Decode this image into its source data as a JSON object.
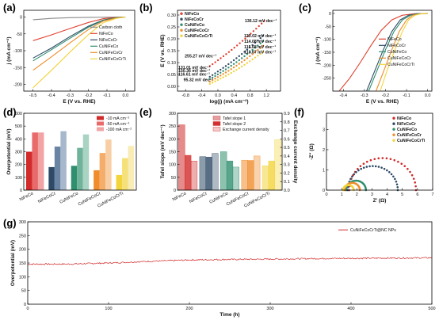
{
  "chart_data": [
    {
      "panel": "(a)",
      "type": "line",
      "xlabel": "E (V vs. RHE)",
      "ylabel": "j (mA cm⁻²)",
      "xlim": [
        -0.55,
        0.05
      ],
      "ylim": [
        -220,
        20
      ],
      "xticks": [
        "-0.5",
        "-0.4",
        "-0.3",
        "-0.2",
        "-0.1",
        "0.0"
      ],
      "xtick_values": [
        -0.5,
        -0.4,
        -0.3,
        -0.2,
        -0.1,
        0.0
      ],
      "yticks": [
        "-200",
        "-150",
        "-100",
        "-50",
        "0"
      ],
      "ytick_values": [
        -200,
        -150,
        -100,
        -50,
        0
      ],
      "series": [
        {
          "name": "Carbon cloth",
          "color": "#8a8a8a",
          "points": [
            [
              -0.5,
              -8
            ],
            [
              -0.4,
              -4
            ],
            [
              -0.3,
              -2
            ],
            [
              -0.2,
              -1
            ],
            [
              -0.1,
              -0.5
            ],
            [
              0.0,
              0
            ]
          ]
        },
        {
          "name": "NiFeCo",
          "color": "#e0402f",
          "points": [
            [
              -0.5,
              -70
            ],
            [
              -0.4,
              -53
            ],
            [
              -0.3,
              -34
            ],
            [
              -0.2,
              -16
            ],
            [
              -0.12,
              -5
            ],
            [
              -0.05,
              -1
            ],
            [
              0.0,
              0
            ]
          ]
        },
        {
          "name": "NiFeCoCr",
          "color": "#2e4a66",
          "points": [
            [
              -0.5,
              -122
            ],
            [
              -0.4,
              -92
            ],
            [
              -0.3,
              -58
            ],
            [
              -0.2,
              -27
            ],
            [
              -0.12,
              -9
            ],
            [
              -0.05,
              -2
            ],
            [
              0.0,
              0
            ]
          ]
        },
        {
          "name": "CuNiFeCo",
          "color": "#2f8f6e",
          "points": [
            [
              -0.5,
              -130
            ],
            [
              -0.4,
              -97
            ],
            [
              -0.3,
              -63
            ],
            [
              -0.2,
              -30
            ],
            [
              -0.12,
              -10
            ],
            [
              -0.05,
              -2
            ],
            [
              0.0,
              0
            ]
          ]
        },
        {
          "name": "CuNiFeCoCr",
          "color": "#f08c2a",
          "points": [
            [
              -0.5,
              -158
            ],
            [
              -0.4,
              -118
            ],
            [
              -0.3,
              -77
            ],
            [
              -0.2,
              -37
            ],
            [
              -0.12,
              -12
            ],
            [
              -0.05,
              -3
            ],
            [
              0.0,
              0
            ]
          ]
        },
        {
          "name": "CuNiFeCoCrTi",
          "color": "#f2d43d",
          "points": [
            [
              -0.5,
              -210
            ],
            [
              -0.4,
              -158
            ],
            [
              -0.3,
              -104
            ],
            [
              -0.2,
              -52
            ],
            [
              -0.12,
              -17
            ],
            [
              -0.05,
              -4
            ],
            [
              0.0,
              0
            ]
          ]
        }
      ]
    },
    {
      "panel": "(b)",
      "type": "scatter",
      "xlabel": "log(j) (mA cm⁻²)",
      "ylabel": "E (V vs. RHE)",
      "xlim": [
        -1.0,
        1.55
      ],
      "ylim": [
        -0.02,
        0.32
      ],
      "xticks": [
        "-0.8",
        "-0.4",
        "0.0",
        "0.4",
        "0.8",
        "1.2"
      ],
      "xtick_values": [
        -0.8,
        -0.4,
        0.0,
        0.4,
        0.8,
        1.2
      ],
      "yticks": [
        "0.00",
        "0.05",
        "0.10",
        "0.15",
        "0.20",
        "0.25",
        "0.30"
      ],
      "ytick_values": [
        0.0,
        0.05,
        0.1,
        0.15,
        0.2,
        0.25,
        0.3
      ],
      "series": [
        {
          "name": "NiFeCo",
          "color": "#e0402f",
          "x0": -0.2,
          "x1": 1.15,
          "y0": 0.085,
          "y1": 0.275,
          "label": "136.12 mV dec⁻¹",
          "label_x": 1.18,
          "label_y": 0.277
        },
        {
          "name": "NiFeCoCr",
          "color": "#2e4a66",
          "x0": -0.2,
          "x1": 1.12,
          "y0": 0.04,
          "y1": 0.213,
          "label": "129.02 mV dec⁻¹",
          "label_x": 1.16,
          "label_y": 0.214
        },
        {
          "name": "CuNiFeCo",
          "color": "#2f8f6e",
          "x0": -0.2,
          "x1": 1.12,
          "y0": 0.03,
          "y1": 0.19,
          "label": "114.08 mV dec⁻¹",
          "label_x": 1.16,
          "label_y": 0.19
        },
        {
          "name": "CuNiFeCoCr",
          "color": "#f08c2a",
          "x0": -0.2,
          "x1": 1.12,
          "y0": 0.02,
          "y1": 0.17,
          "label": "115.68 mV dec⁻¹",
          "label_x": 1.16,
          "label_y": 0.166
        },
        {
          "name": "CuNiFeCoCrTi",
          "color": "#f2d43d",
          "x0": -0.2,
          "x1": 1.12,
          "y0": 0.01,
          "y1": 0.145,
          "label": "113.67 mV dec⁻¹",
          "label_x": 1.16,
          "label_y": 0.145
        }
      ],
      "annotations": [
        {
          "text": "255.27 mV dec⁻¹",
          "x": -0.82,
          "y": 0.122,
          "color": "#e0402f"
        },
        {
          "text": "131.01 mV dec⁻¹",
          "x": -0.98,
          "y": 0.073,
          "color": "#2e4a66"
        },
        {
          "text": "150.36 mV dec⁻¹",
          "x": -0.98,
          "y": 0.06,
          "color": "#2f8f6e"
        },
        {
          "text": "116.61 mV dec⁻¹",
          "x": -0.98,
          "y": 0.045,
          "color": "#f08c2a"
        },
        {
          "text": "95.32 mV dec⁻¹",
          "x": -0.85,
          "y": 0.022,
          "color": "#d4b52a"
        }
      ]
    },
    {
      "panel": "(c)",
      "type": "line",
      "xlabel": "E (V vs. RHE)",
      "ylabel": "j (mA cm⁻²)",
      "xlim": [
        -0.45,
        0.02
      ],
      "ylim": [
        -300,
        12
      ],
      "xticks": [
        "-0.4",
        "-0.3",
        "-0.2",
        "-0.1",
        "0.0"
      ],
      "xtick_values": [
        -0.4,
        -0.3,
        -0.2,
        -0.1,
        0.0
      ],
      "yticks": [
        "-250",
        "-200",
        "-150",
        "-100",
        "-50",
        "0"
      ],
      "ytick_values": [
        -250,
        -200,
        -150,
        -100,
        -50,
        0
      ],
      "series": [
        {
          "name": "NiFeCo",
          "color": "#e0402f",
          "points": [
            [
              -0.42,
              -300
            ],
            [
              -0.37,
              -250
            ],
            [
              -0.32,
              -190
            ],
            [
              -0.27,
              -125
            ],
            [
              -0.22,
              -65
            ],
            [
              -0.17,
              -25
            ],
            [
              -0.12,
              -7
            ],
            [
              -0.06,
              -1
            ],
            [
              0.0,
              0
            ]
          ]
        },
        {
          "name": "NiFeCoCr",
          "color": "#2e4a66",
          "points": [
            [
              -0.29,
              -300
            ],
            [
              -0.25,
              -220
            ],
            [
              -0.21,
              -140
            ],
            [
              -0.17,
              -70
            ],
            [
              -0.13,
              -25
            ],
            [
              -0.09,
              -7
            ],
            [
              -0.05,
              -1
            ],
            [
              0.0,
              0
            ]
          ]
        },
        {
          "name": "CuNiFeCo",
          "color": "#2f8f6e",
          "points": [
            [
              -0.28,
              -300
            ],
            [
              -0.24,
              -220
            ],
            [
              -0.2,
              -140
            ],
            [
              -0.16,
              -70
            ],
            [
              -0.12,
              -25
            ],
            [
              -0.08,
              -7
            ],
            [
              -0.04,
              -1
            ],
            [
              0.0,
              0
            ]
          ]
        },
        {
          "name": "CuNiFeCoCr",
          "color": "#f08c2a",
          "points": [
            [
              -0.245,
              -300
            ],
            [
              -0.205,
              -215
            ],
            [
              -0.17,
              -140
            ],
            [
              -0.135,
              -70
            ],
            [
              -0.1,
              -25
            ],
            [
              -0.07,
              -7
            ],
            [
              -0.03,
              -1
            ],
            [
              0.0,
              0
            ]
          ]
        },
        {
          "name": "CuNiFeCoCrTi",
          "color": "#f2d43d",
          "points": [
            [
              -0.225,
              -300
            ],
            [
              -0.19,
              -215
            ],
            [
              -0.155,
              -140
            ],
            [
              -0.12,
              -70
            ],
            [
              -0.09,
              -25
            ],
            [
              -0.06,
              -7
            ],
            [
              -0.03,
              -1
            ],
            [
              0.0,
              0
            ]
          ]
        }
      ]
    },
    {
      "panel": "(d)",
      "type": "bar",
      "ylabel": "Overpotential (mV)",
      "ylim": [
        0,
        600
      ],
      "yticks": [
        "0",
        "100",
        "200",
        "300",
        "400",
        "500",
        "600"
      ],
      "ytick_values": [
        0,
        100,
        200,
        300,
        400,
        500,
        600
      ],
      "categories": [
        "NiFeCo",
        "NiFeCoCr",
        "CuNiFeCo",
        "CuNiFeCoCr",
        "CuNiFeCoCrTi"
      ],
      "series": [
        {
          "name": "-10 mA cm⁻²",
          "values": [
            300,
            180,
            190,
            155,
            118
          ],
          "colors": [
            "#d22b2b",
            "#2e4a66",
            "#2f8f6e",
            "#f08c2a",
            "#f2d43d"
          ]
        },
        {
          "name": "-50 mA cm⁻²",
          "values": [
            450,
            340,
            330,
            290,
            250
          ],
          "colors": [
            "#e86a6a",
            "#6a84a3",
            "#6fb49a",
            "#f4ad6a",
            "#f5e07a"
          ]
        },
        {
          "name": "-100 mA cm⁻²",
          "values": [
            450,
            460,
            435,
            395,
            345
          ],
          "colors": [
            "#f2a3a3",
            "#a7b8cc",
            "#a9d3c3",
            "#f8cfa5",
            "#f9ecb5"
          ]
        }
      ],
      "legend_swatches": [
        "#d22b2b",
        "#e86a6a",
        "#f2a3a3"
      ]
    },
    {
      "panel": "(e)",
      "type": "bar",
      "ylabel": "Tafel slope (mV dec⁻¹)",
      "y2label": "Exchange current density",
      "ylim": [
        0,
        300
      ],
      "y2lim": [
        0.0,
        0.9
      ],
      "yticks": [
        "0",
        "50",
        "100",
        "150",
        "200",
        "250",
        "300"
      ],
      "ytick_values": [
        0,
        50,
        100,
        150,
        200,
        250,
        300
      ],
      "y2ticks": [
        "0.0",
        "0.1",
        "0.2",
        "0.3",
        "0.4",
        "0.5",
        "0.6",
        "0.7",
        "0.8",
        "0.9"
      ],
      "y2tick_values": [
        0.0,
        0.1,
        0.2,
        0.3,
        0.4,
        0.5,
        0.6,
        0.7,
        0.8,
        0.9
      ],
      "categories": [
        "NiFeCo",
        "NiFeCoCr",
        "CuNiFeCo",
        "CuNiFeCoCr",
        "CuNiFeCoCrTi"
      ],
      "series": [
        {
          "name": "Tafel slope 1",
          "values": [
            255,
            131,
            150,
            117,
            95
          ]
        },
        {
          "name": "Tafel slope 2",
          "values": [
            136,
            129,
            114,
            116,
            114
          ]
        },
        {
          "name": "Exchange current density",
          "values": [
            0.34,
            0.43,
            0.27,
            0.4,
            0.59
          ]
        }
      ],
      "colors": [
        "#d22b2b",
        "#2e4a66",
        "#2f8f6e",
        "#f08c2a",
        "#f2d43d"
      ]
    },
    {
      "panel": "(f)",
      "type": "scatter",
      "xlabel": "Z' (Ω)",
      "ylabel": "-Z'' (Ω)",
      "xlim": [
        0,
        7
      ],
      "ylim": [
        0,
        3.8
      ],
      "xticks": [
        "0",
        "1",
        "2",
        "3",
        "4",
        "5",
        "6",
        "7"
      ],
      "xtick_values": [
        0,
        1,
        2,
        3,
        4,
        5,
        6,
        7
      ],
      "yticks": [
        "0",
        "1",
        "2",
        "3"
      ],
      "ytick_values": [
        0,
        1,
        2,
        3
      ],
      "series": [
        {
          "name": "NiFeCo",
          "color": "#d22b2b",
          "x_start": 1.5,
          "x_end": 5.9
        },
        {
          "name": "NiFeCoCr",
          "color": "#2e4a66",
          "x_start": 1.4,
          "x_end": 4.7
        },
        {
          "name": "CuNiFeCo",
          "color": "#2f8f6e",
          "x_start": 1.3,
          "x_end": 2.6
        },
        {
          "name": "CuNiFeCoCr",
          "color": "#f08c2a",
          "x_start": 1.2,
          "x_end": 2.2
        },
        {
          "name": "CuNiFeCoCrTi",
          "color": "#f2d43d",
          "x_start": 1.1,
          "x_end": 1.8
        }
      ]
    },
    {
      "panel": "(g)",
      "type": "line",
      "xlabel": "Time (h)",
      "ylabel": "Overpotential (mV)",
      "xlim": [
        0,
        500
      ],
      "ylim": [
        0,
        300
      ],
      "xticks": [
        "0",
        "100",
        "200",
        "300",
        "400",
        "500"
      ],
      "xtick_values": [
        0,
        100,
        200,
        300,
        400,
        500
      ],
      "yticks": [
        "0",
        "50",
        "100",
        "150",
        "200",
        "250",
        "300"
      ],
      "ytick_values": [
        0,
        50,
        100,
        150,
        200,
        250,
        300
      ],
      "series": [
        {
          "name": "CuNiFeCoCrTi@NC NPs",
          "color": "#d22b2b",
          "points": [
            [
              0,
              146
            ],
            [
              50,
              146
            ],
            [
              100,
              150
            ],
            [
              150,
              156
            ],
            [
              200,
              161
            ],
            [
              250,
              163
            ],
            [
              300,
              164
            ],
            [
              350,
              166
            ],
            [
              400,
              167
            ],
            [
              450,
              168
            ],
            [
              500,
              169
            ]
          ]
        }
      ]
    }
  ]
}
